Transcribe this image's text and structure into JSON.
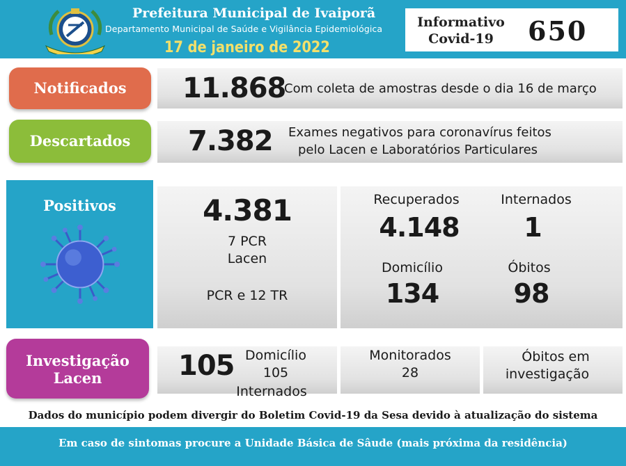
{
  "header": {
    "title": "Prefeitura Municipal de Ivaiporã",
    "subtitle": "Departamento Municipal de Saúde e Vigilância Epidemiológica",
    "date": "17 de janeiro de 2022",
    "bulletin_line1": "Informativo",
    "bulletin_line2": "Covid-19",
    "bulletin_number": "650",
    "seal_icon": "municipal-seal-icon",
    "colors": {
      "header_bg": "#25a4c8",
      "date_text": "#f3e06a"
    }
  },
  "notificados": {
    "label": "Notificados",
    "value": "11.868",
    "description": "Com coleta de amostras desde o dia 16 de março",
    "color": "#e06c4c"
  },
  "descartados": {
    "label": "Descartados",
    "value": "7.382",
    "description_line1": "Exames negativos para coronavírus feitos",
    "description_line2": "pelo Lacen e Laboratórios Particulares",
    "color": "#8cbd3a"
  },
  "positivos": {
    "label": "Positivos",
    "icon": "coronavirus-icon",
    "color": "#25a4c8",
    "value": "4.381",
    "line1": "7 PCR",
    "line2": "Lacen",
    "line3": "PCR e 12 TR",
    "recuperados_label": "Recuperados",
    "recuperados_value": "4.148",
    "internados_label": "Internados",
    "internados_value": "1",
    "domicilio_label": "Domicílio",
    "domicilio_value": "134",
    "obitos_label": "Óbitos",
    "obitos_value": "98"
  },
  "investigacao": {
    "label_line1": "Investigação",
    "label_line2": "Lacen",
    "color": "#b43b9a",
    "value": "105",
    "domicilio_label": "Domicílio",
    "domicilio_value": "105",
    "internados_label": "Internados",
    "monitorados_label": "Monitorados",
    "monitorados_value": "28",
    "obitos_line1": "Óbitos em",
    "obitos_line2": "investigação"
  },
  "note": "Dados do município podem divergir do Boletim Covid-19 da Sesa devido à atualização do sistema",
  "footer": "Em caso de sintomas procure a Unidade Básica de Sâude (mais próxima da residência)"
}
